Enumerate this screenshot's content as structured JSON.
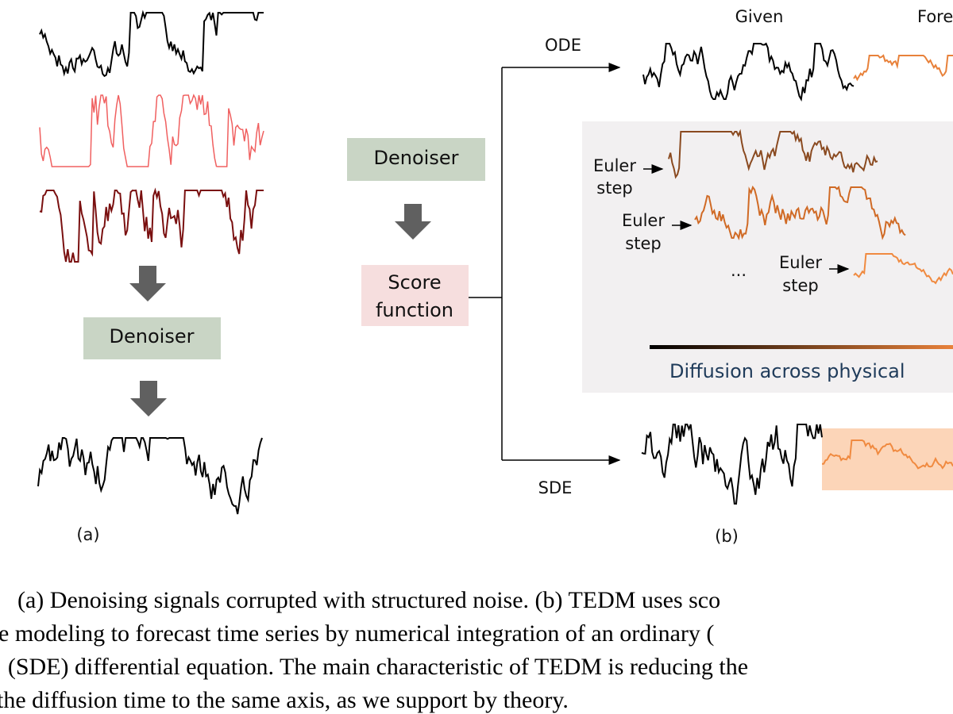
{
  "panel_a": {
    "denoiser": "Denoiser",
    "label": "(a)"
  },
  "panel_b": {
    "denoiser": "Denoiser",
    "score_function": [
      "Score",
      "function"
    ],
    "ode": "ODE",
    "sde": "SDE",
    "given": "Given",
    "forecast": "Fore",
    "euler_steps": [
      [
        "Euler",
        "step"
      ],
      [
        "Euler",
        "step"
      ],
      [
        "Euler",
        "step"
      ]
    ],
    "ellipsis": "...",
    "diffusion": "Diffusion across physical",
    "label": "(b)"
  },
  "caption": {
    "lines": [
      "(a) Denoising signals corrupted with structured noise.  (b) TEDM uses sco",
      "e modeling to forecast time series by numerical integration of an ordinary (",
      ": (SDE) differential equation. The main characteristic of TEDM is reducing the",
      "the diffusion time to the same axis, as we support by theory."
    ]
  }
}
